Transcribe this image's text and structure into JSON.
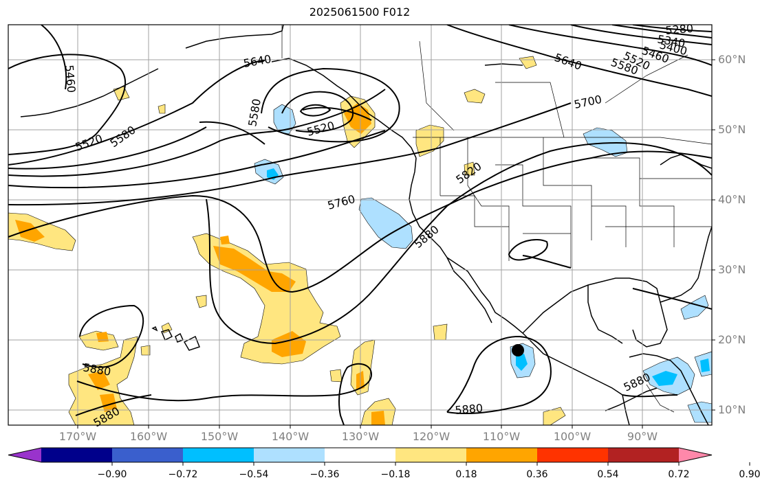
{
  "title": "2025061500 F012",
  "latitude_labels": [
    "60°N",
    "50°N",
    "40°N",
    "30°N",
    "20°N",
    "10°N"
  ],
  "longitude_labels": [
    "170°W",
    "160°W",
    "150°W",
    "140°W",
    "130°W",
    "120°W",
    "110°W",
    "100°W",
    "90°W"
  ],
  "contour_labels": [
    "5460",
    "5520",
    "5580",
    "5640",
    "5580",
    "5520",
    "5640",
    "5700",
    "5820",
    "5760",
    "5880",
    "5880",
    "5880",
    "5880",
    "5280",
    "5340",
    "5400",
    "5460",
    "5520",
    "5580",
    "5880"
  ],
  "colorbar": {
    "tick_labels": [
      "−0.90",
      "−0.72",
      "−0.54",
      "−0.36",
      "−0.18",
      "0.18",
      "0.36",
      "0.54",
      "0.72",
      "0.90"
    ],
    "colors": [
      "#9933cc",
      "#00008b",
      "#3a5fcd",
      "#00bfff",
      "#aee0ff",
      "#ffffff",
      "#ffe680",
      "#ffa500",
      "#ff3300",
      "#b22222",
      "#ff88aa"
    ]
  },
  "colors": {
    "land_outline": "#000000",
    "grid": "#a0a0a0",
    "contour": "#000000",
    "marker": "#000000"
  },
  "marker": {
    "shape": "filled-circle"
  }
}
